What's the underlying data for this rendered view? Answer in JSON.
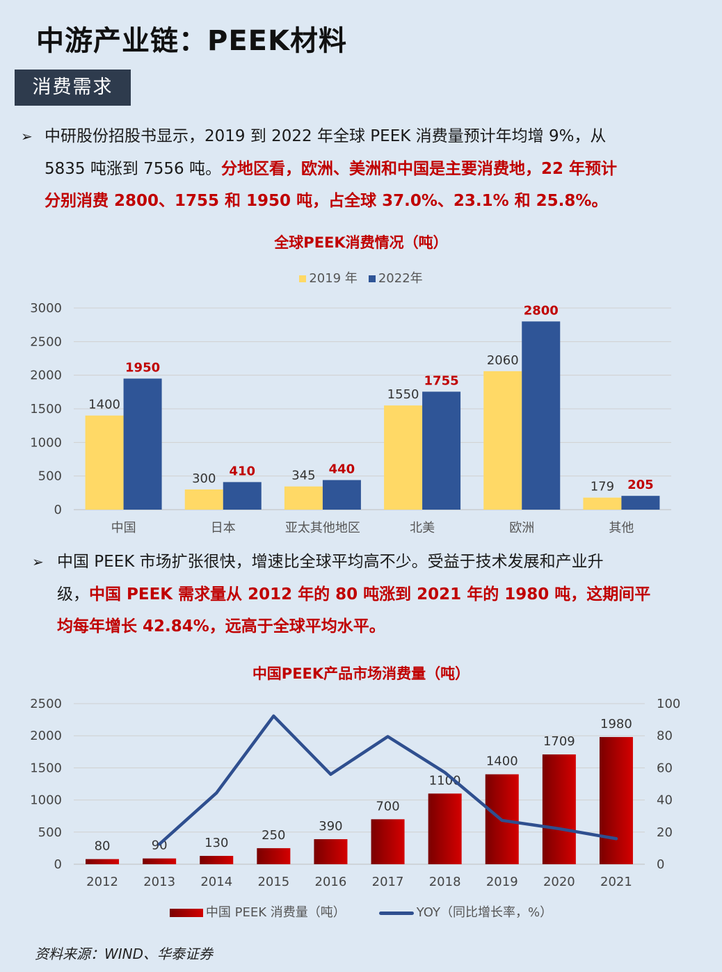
{
  "page": {
    "title": "中游产业链：PEEK材料",
    "section": "消费需求",
    "source": "资料来源：WIND、华泰证券"
  },
  "bullets": [
    {
      "arrow": "➢",
      "line1_plain": "中研股份招股书显示，2019 到 2022 年全球 PEEK 消费量预计年均增 9%，从",
      "line2_plain": "5835 吨涨到 7556 吨。",
      "line2_red": "分地区看，欧洲、美洲和中国是主要消费地，22 年预计",
      "line3_red": "分别消费 2800、1755 和 1950 吨，占全球 37.0%、23.1% 和 25.8%。"
    },
    {
      "arrow": "➢",
      "line1_plain": "中国 PEEK 市场扩张很快，增速比全球平均高不少。受益于技术发展和产业升",
      "line2_plain": "级，",
      "line2_red": "中国 PEEK 需求量从 2012 年的 80 吨涨到 2021 年的 1980 吨，这期间平",
      "line3_red": "均每年增长 42.84%，远高于全球平均水平。"
    }
  ],
  "chart_data": [
    {
      "type": "bar",
      "title": "全球PEEK消费情况（吨）",
      "categories": [
        "中国",
        "日本",
        "亚太其他地区",
        "北美",
        "欧洲",
        "其他"
      ],
      "series": [
        {
          "name": "2019 年",
          "values": [
            1400,
            300,
            345,
            1550,
            2060,
            179
          ],
          "color": "#ffd966"
        },
        {
          "name": "2022年",
          "values": [
            1950,
            410,
            440,
            1755,
            2800,
            205
          ],
          "color": "#2f5597",
          "label_color": "#c00000"
        }
      ],
      "ylim": [
        0,
        3000
      ],
      "yticks": [
        0,
        500,
        1000,
        1500,
        2000,
        2500,
        3000
      ],
      "grid": true,
      "legend": "top-center"
    },
    {
      "type": "bar+line",
      "title": "中国PEEK产品市场消费量（吨）",
      "categories": [
        "2012",
        "2013",
        "2014",
        "2015",
        "2016",
        "2017",
        "2018",
        "2019",
        "2020",
        "2021"
      ],
      "series": [
        {
          "name": "中国 PEEK 消费量（吨）",
          "type": "bar",
          "axis": "left",
          "values": [
            80,
            90,
            130,
            250,
            390,
            700,
            1100,
            1400,
            1709,
            1980
          ],
          "color": "#c00000"
        },
        {
          "name": "YOY（同比增长率，%）",
          "type": "line",
          "axis": "right",
          "values": [
            null,
            12.5,
            44.4,
            92.3,
            56.0,
            79.5,
            57.1,
            27.3,
            22.1,
            15.9
          ],
          "color": "#2f4f8f"
        }
      ],
      "ylim_left": [
        0,
        2500
      ],
      "yticks_left": [
        0,
        500,
        1000,
        1500,
        2000,
        2500
      ],
      "ylim_right": [
        0,
        100
      ],
      "yticks_right": [
        0,
        20,
        40,
        60,
        80,
        100
      ],
      "grid": true,
      "legend": "bottom-center"
    }
  ]
}
